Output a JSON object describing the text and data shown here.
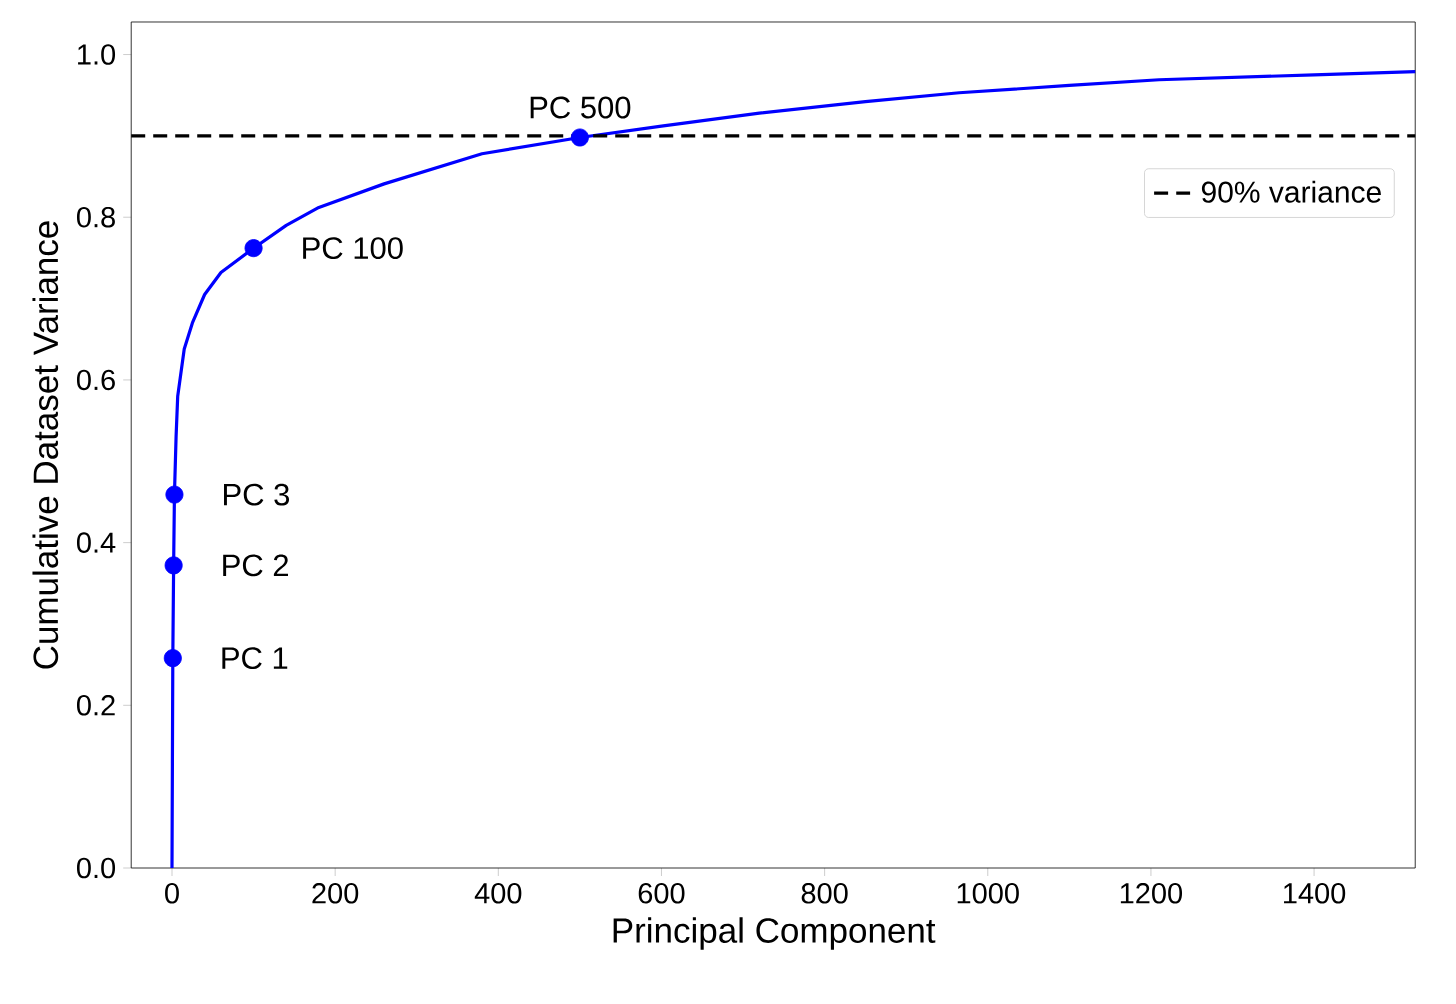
{
  "chart_data": {
    "type": "line",
    "xlabel": "Principal Component",
    "ylabel": "Cumulative Dataset Variance",
    "series": [
      {
        "color": "#0000ff",
        "x": [
          0,
          1,
          2,
          3,
          5,
          7,
          15,
          25,
          40,
          60,
          100,
          140,
          180,
          260,
          380,
          500,
          600,
          720,
          850,
          965,
          1100,
          1210,
          1400,
          1524
        ],
        "values": [
          0,
          0.258,
          0.372,
          0.459,
          0.53,
          0.58,
          0.638,
          0.67,
          0.705,
          0.732,
          0.762,
          0.79,
          0.812,
          0.841,
          0.878,
          0.898,
          0.912,
          0.928,
          0.942,
          0.953,
          0.962,
          0.969,
          0.975,
          0.979
        ]
      },
      {
        "type": "scatter",
        "color": "#0000ff",
        "marker": "circle",
        "x": [
          1,
          2,
          3,
          100,
          500
        ],
        "values": [
          0.258,
          0.372,
          0.459,
          0.762,
          0.898
        ]
      }
    ],
    "annotations": [
      {
        "text": "PC 1",
        "x": 1,
        "y": 0.258
      },
      {
        "text": "PC 2",
        "x": 2,
        "y": 0.372
      },
      {
        "text": "PC 3",
        "x": 3,
        "y": 0.459
      },
      {
        "text": "PC 100",
        "x": 100,
        "y": 0.762
      },
      {
        "text": "PC 500",
        "x": 500,
        "y": 0.898
      }
    ],
    "ref_lines": [
      {
        "axis": "y",
        "value": 0.9,
        "label": "90% variance",
        "color": "#000000",
        "line_style": "dashed"
      }
    ],
    "xlim": [
      -50,
      1524
    ],
    "ylim": [
      0,
      1.04
    ],
    "xticks": [
      0,
      200,
      400,
      600,
      800,
      1000,
      1200,
      1400
    ],
    "yticks": [
      {
        "value": 0,
        "label": "0.0"
      },
      {
        "value": 0.2,
        "label": "0.2"
      },
      {
        "value": 0.4,
        "label": "0.4"
      },
      {
        "value": 0.6,
        "label": "0.6"
      },
      {
        "value": 0.8,
        "label": "0.8"
      },
      {
        "value": 1.0,
        "label": "1.0"
      }
    ],
    "grid": false,
    "legend": "top right"
  }
}
